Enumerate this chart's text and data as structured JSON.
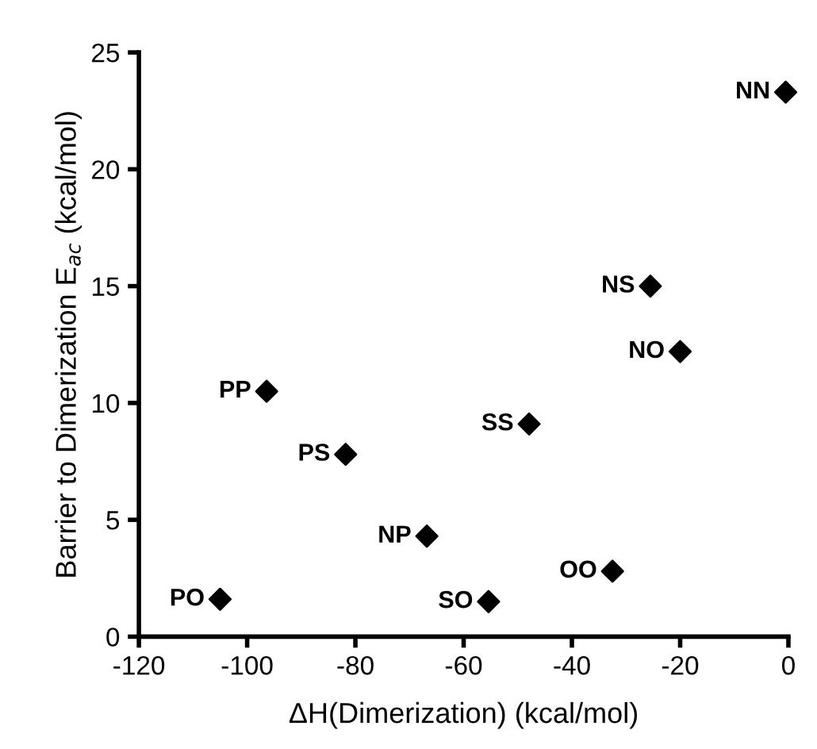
{
  "chart_data": {
    "type": "scatter",
    "xlabel": "ΔH(Dimerization) (kcal/mol)",
    "ylabel": "Barrier to Dimerization E$_{ac}$ (kcal/mol)",
    "x": [
      -0.5,
      -25.5,
      -20,
      -96.4,
      -81.8,
      -47.9,
      -66.8,
      -32.5,
      -55.4,
      -105
    ],
    "series": [
      {
        "color": "#000000",
        "values": [
          23.3,
          15.0,
          12.2,
          10.5,
          7.8,
          9.1,
          4.3,
          2.8,
          1.5,
          1.6
        ]
      }
    ],
    "marker": "diamond",
    "grid": false,
    "xlim": [
      -120,
      0
    ],
    "xticks": [
      -120,
      -100,
      -80,
      -60,
      -40,
      -20,
      0
    ],
    "ylim": [
      0,
      25
    ],
    "yticks": [
      0,
      5,
      10,
      15,
      20,
      25
    ],
    "annotations": [
      {
        "text": "NN",
        "x": -0.5,
        "y": 23.3
      },
      {
        "text": "NS",
        "x": -25.5,
        "y": 15.0
      },
      {
        "text": "NO",
        "x": -20,
        "y": 12.2
      },
      {
        "text": "PP",
        "x": -96.4,
        "y": 10.5
      },
      {
        "text": "PS",
        "x": -81.8,
        "y": 7.8
      },
      {
        "text": "SS",
        "x": -47.9,
        "y": 9.1
      },
      {
        "text": "NP",
        "x": -66.8,
        "y": 4.3
      },
      {
        "text": "OO",
        "x": -32.5,
        "y": 2.8
      },
      {
        "text": "SO",
        "x": -55.4,
        "y": 1.5
      },
      {
        "text": "PO",
        "x": -105,
        "y": 1.6
      }
    ]
  }
}
